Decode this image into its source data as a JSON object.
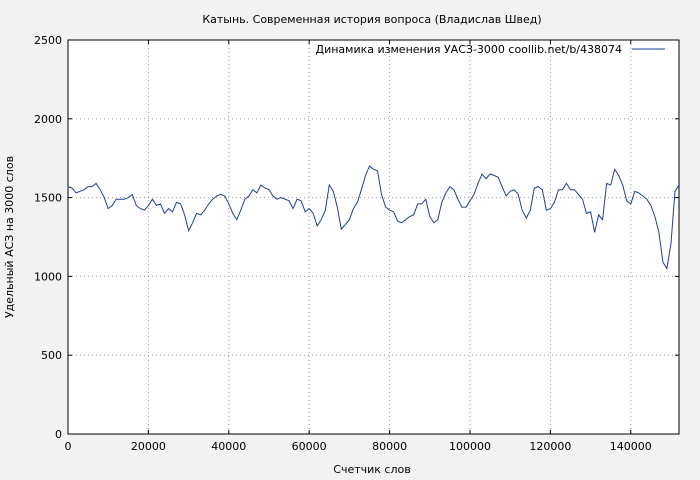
{
  "chart_data": {
    "type": "line",
    "title": "Катынь. Современная история вопроса (Владислав Швед)",
    "xlabel": "Счетчик слов",
    "ylabel": "Удельный АСЗ на 3000 слов",
    "xlim": [
      0,
      152000
    ],
    "ylim": [
      0,
      2500
    ],
    "xticks": [
      "0",
      "20000",
      "40000",
      "60000",
      "80000",
      "100000",
      "120000",
      "140000"
    ],
    "yticks": [
      "0",
      "500",
      "1000",
      "1500",
      "2000",
      "2500"
    ],
    "grid": true,
    "legend_position": "top-right",
    "colors": {
      "series": "#1f3f9a",
      "plot_bg": "#ffffff",
      "page_bg": "#f2f2f2",
      "grid": "#999999"
    },
    "series": [
      {
        "name": "Динамика изменения УАСЗ-3000  coollib.net/b/438074",
        "x": [
          0,
          1000,
          2000,
          3000,
          4000,
          5000,
          6000,
          7000,
          8000,
          9000,
          10000,
          11000,
          12000,
          13000,
          14000,
          15000,
          16000,
          17000,
          18000,
          19000,
          20000,
          21000,
          22000,
          23000,
          24000,
          25000,
          26000,
          27000,
          28000,
          29000,
          30000,
          31000,
          32000,
          33000,
          34000,
          35000,
          36000,
          37000,
          38000,
          39000,
          40000,
          41000,
          42000,
          43000,
          44000,
          45000,
          46000,
          47000,
          48000,
          49000,
          50000,
          51000,
          52000,
          53000,
          54000,
          55000,
          56000,
          57000,
          58000,
          59000,
          60000,
          61000,
          62000,
          63000,
          64000,
          65000,
          66000,
          67000,
          68000,
          69000,
          70000,
          71000,
          72000,
          73000,
          74000,
          75000,
          76000,
          77000,
          78000,
          79000,
          80000,
          81000,
          82000,
          83000,
          84000,
          85000,
          86000,
          87000,
          88000,
          89000,
          90000,
          91000,
          92000,
          93000,
          94000,
          95000,
          96000,
          97000,
          98000,
          99000,
          100000,
          101000,
          102000,
          103000,
          104000,
          105000,
          106000,
          107000,
          108000,
          109000,
          110000,
          111000,
          112000,
          113000,
          114000,
          115000,
          116000,
          117000,
          118000,
          119000,
          120000,
          121000,
          122000,
          123000,
          124000,
          125000,
          126000,
          127000,
          128000,
          129000,
          130000,
          131000,
          132000,
          133000,
          134000,
          135000,
          136000,
          137000,
          138000,
          139000,
          140000,
          141000,
          142000,
          143000,
          144000,
          145000,
          146000,
          147000,
          148000,
          149000,
          150000,
          151000,
          152000
        ],
        "y": [
          1570,
          1560,
          1530,
          1540,
          1550,
          1570,
          1570,
          1590,
          1550,
          1500,
          1430,
          1450,
          1490,
          1490,
          1490,
          1500,
          1520,
          1450,
          1430,
          1420,
          1450,
          1490,
          1450,
          1460,
          1400,
          1430,
          1410,
          1470,
          1460,
          1390,
          1290,
          1340,
          1400,
          1390,
          1420,
          1460,
          1490,
          1510,
          1520,
          1510,
          1460,
          1400,
          1360,
          1420,
          1490,
          1510,
          1550,
          1530,
          1580,
          1560,
          1550,
          1510,
          1490,
          1500,
          1490,
          1480,
          1430,
          1490,
          1480,
          1410,
          1430,
          1400,
          1320,
          1360,
          1420,
          1580,
          1540,
          1440,
          1300,
          1330,
          1360,
          1430,
          1470,
          1550,
          1640,
          1700,
          1680,
          1670,
          1520,
          1440,
          1420,
          1410,
          1350,
          1340,
          1360,
          1380,
          1390,
          1460,
          1460,
          1490,
          1380,
          1340,
          1360,
          1470,
          1530,
          1570,
          1550,
          1490,
          1440,
          1440,
          1480,
          1520,
          1590,
          1650,
          1620,
          1650,
          1640,
          1630,
          1570,
          1510,
          1540,
          1550,
          1520,
          1420,
          1370,
          1420,
          1560,
          1570,
          1550,
          1420,
          1430,
          1470,
          1550,
          1550,
          1590,
          1550,
          1550,
          1520,
          1490,
          1400,
          1410,
          1280,
          1390,
          1360,
          1590,
          1580,
          1680,
          1640,
          1580,
          1480,
          1460,
          1540,
          1530,
          1510,
          1490,
          1450,
          1380,
          1280,
          1090,
          1050,
          1210,
          1540,
          1580
        ]
      }
    ]
  }
}
